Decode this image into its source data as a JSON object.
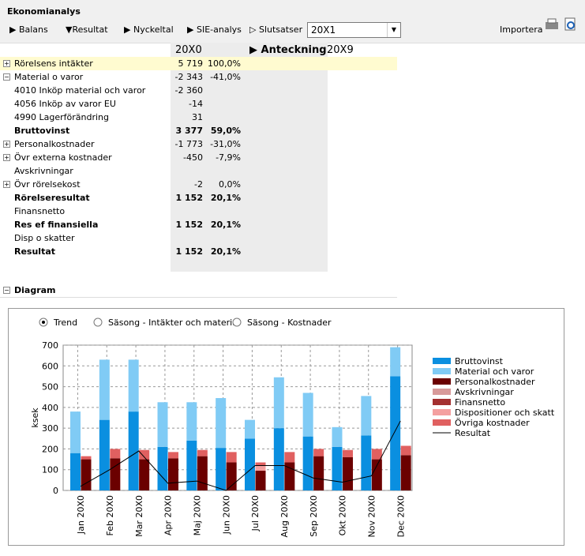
{
  "window": {
    "title": "Ekonomianalys"
  },
  "toolbar": {
    "buttons": [
      "Balans",
      "Resultat",
      "Nyckeltal",
      "SIE-analys",
      "Slutsatser"
    ],
    "year": "20X1",
    "import": "Importera"
  },
  "table": {
    "columns": [
      "20X0",
      "Anteckning",
      "20X9"
    ],
    "rows": [
      {
        "label": "Rörelsens intäkter",
        "value": "5 719",
        "pct": "100,0%",
        "bold": false,
        "expander": "plus",
        "highlight": true
      },
      {
        "label": "Material o varor",
        "value": "-2 343",
        "pct": "-41,0%",
        "bold": false,
        "expander": "minus"
      },
      {
        "label": "4010 Inköp material och varor",
        "value": "-2 360",
        "bold": false
      },
      {
        "label": "4056 Inköp av varor EU",
        "value": "-14",
        "bold": false
      },
      {
        "label": "4990 Lagerförändring",
        "value": "31",
        "bold": false
      },
      {
        "label": "Bruttovinst",
        "value": "3 377",
        "pct": "59,0%",
        "bold": true
      },
      {
        "label": "Personalkostnader",
        "value": "-1 773",
        "pct": "-31,0%",
        "bold": false,
        "expander": "plus"
      },
      {
        "label": "Övr externa kostnader",
        "value": "-450",
        "pct": "-7,9%",
        "bold": false,
        "expander": "plus"
      },
      {
        "label": "Avskrivningar",
        "bold": false
      },
      {
        "label": "Övr rörelsekost",
        "value": "-2",
        "pct": "0,0%",
        "bold": false,
        "expander": "plus"
      },
      {
        "label": "Rörelseresultat",
        "value": "1 152",
        "pct": "20,1%",
        "bold": true
      },
      {
        "label": "Finansnetto",
        "bold": false
      },
      {
        "label": "Res ef finansiella",
        "value": "1 152",
        "pct": "20,1%",
        "bold": true
      },
      {
        "label": "Disp o skatter",
        "bold": false
      },
      {
        "label": "Resultat",
        "value": "1 152",
        "pct": "20,1%",
        "bold": true
      }
    ]
  },
  "diagram": {
    "title": "Diagram",
    "options": [
      "Trend",
      "Säsong - Intäkter och material",
      "Säsong - Kostnader"
    ],
    "selected": 0
  },
  "chart_data": {
    "type": "bar",
    "stacked": true,
    "ylabel": "ksek",
    "ylim": [
      0,
      700
    ],
    "yticks": [
      0,
      100,
      200,
      300,
      400,
      500,
      600,
      700
    ],
    "grid": true,
    "categories": [
      "Jan 20X0",
      "Feb 20X0",
      "Mar 20X0",
      "Apr 20X0",
      "Maj 20X0",
      "Jun 20X0",
      "Jul 20X0",
      "Aug 20X0",
      "Sep 20X0",
      "Okt 20X0",
      "Nov 20X0",
      "Dec 20X0"
    ],
    "series": [
      {
        "name": "Bruttovinst",
        "color": "#0a8fe0",
        "stack": "a",
        "values": [
          180,
          340,
          380,
          210,
          240,
          205,
          250,
          300,
          260,
          210,
          265,
          550
        ]
      },
      {
        "name": "Material och varor",
        "color": "#80cbf5",
        "stack": "a",
        "values": [
          200,
          290,
          250,
          215,
          185,
          240,
          90,
          245,
          210,
          95,
          190,
          140
        ]
      },
      {
        "name": "Personalkostnader",
        "color": "#6b0000",
        "stack": "b",
        "values": [
          150,
          155,
          150,
          155,
          165,
          135,
          95,
          135,
          165,
          160,
          150,
          170
        ]
      },
      {
        "name": "Avskrivningar",
        "color": "#d89a9a",
        "stack": "b",
        "values": [
          0,
          0,
          0,
          0,
          0,
          0,
          0,
          0,
          0,
          0,
          0,
          0
        ]
      },
      {
        "name": "Finansnetto",
        "color": "#a33030",
        "stack": "b",
        "values": [
          0,
          0,
          0,
          0,
          0,
          0,
          0,
          0,
          0,
          0,
          0,
          0
        ]
      },
      {
        "name": "Dispositioner och skatt",
        "color": "#f4a0a0",
        "stack": "b",
        "values": [
          0,
          0,
          0,
          0,
          0,
          0,
          25,
          0,
          0,
          0,
          0,
          0
        ]
      },
      {
        "name": "Övriga kostnader",
        "color": "#e06060",
        "stack": "b",
        "values": [
          15,
          45,
          45,
          30,
          30,
          50,
          15,
          50,
          35,
          35,
          50,
          45
        ]
      },
      {
        "name": "Resultat",
        "color": "#000000",
        "type": "line",
        "values": [
          20,
          100,
          190,
          35,
          45,
          0,
          120,
          120,
          60,
          40,
          70,
          335
        ]
      }
    ]
  }
}
